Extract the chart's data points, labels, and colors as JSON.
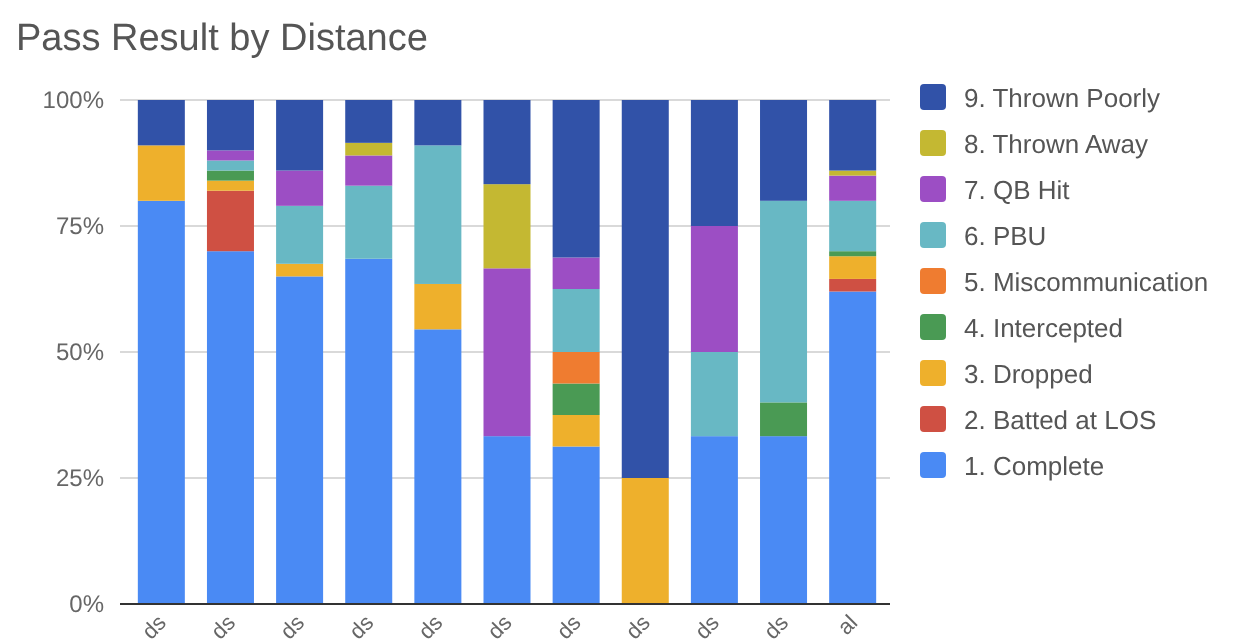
{
  "chart_data": {
    "type": "bar",
    "title": "Pass Result by Distance",
    "stacked": true,
    "categories": [
      "ds",
      "ds",
      "ds",
      "ds",
      "ds",
      "ds",
      "ds",
      "ds",
      "ds",
      "ds",
      "al"
    ],
    "series": [
      {
        "name": "1. Complete",
        "color": "#4a8af4",
        "values": [
          80,
          70,
          65,
          68.5,
          54.5,
          33.3,
          31.25,
          0,
          33.3,
          33.3,
          62
        ]
      },
      {
        "name": "2. Batted at LOS",
        "color": "#cf5043",
        "values": [
          0,
          12,
          0,
          0,
          0,
          0,
          0,
          0,
          0,
          0,
          2.5
        ]
      },
      {
        "name": "3. Dropped",
        "color": "#eeb02c",
        "values": [
          11,
          2,
          2.5,
          0,
          9,
          0,
          6.25,
          25,
          0,
          0,
          4.5
        ]
      },
      {
        "name": "4. Intercepted",
        "color": "#4a9a54",
        "values": [
          0,
          2,
          0,
          0,
          0,
          0,
          6.25,
          0,
          0,
          6.7,
          1
        ]
      },
      {
        "name": "5. Miscommunication",
        "color": "#ef7c30",
        "values": [
          0,
          0,
          0,
          0,
          0,
          0,
          6.25,
          0,
          0,
          0,
          0
        ]
      },
      {
        "name": "6. PBU",
        "color": "#68b8c4",
        "values": [
          0,
          2,
          11.5,
          14.5,
          27.5,
          0,
          12.5,
          0,
          16.7,
          40,
          10
        ]
      },
      {
        "name": "7. QB Hit",
        "color": "#9c4ec4",
        "values": [
          0,
          2,
          7,
          6,
          0,
          33.3,
          6.25,
          0,
          25,
          0,
          5
        ]
      },
      {
        "name": "8. Thrown Away",
        "color": "#c4b832",
        "values": [
          0,
          0,
          0,
          2.5,
          0,
          16.7,
          0,
          0,
          0,
          0,
          1
        ]
      },
      {
        "name": "9. Thrown Poorly",
        "color": "#3152a8",
        "values": [
          9,
          10,
          14,
          8.5,
          9,
          16.7,
          31.25,
          75,
          25,
          20,
          14
        ]
      }
    ],
    "ylim": [
      0,
      100
    ],
    "yticks": [
      {
        "value": 0,
        "label": "0%"
      },
      {
        "value": 25,
        "label": "25%"
      },
      {
        "value": 50,
        "label": "50%"
      },
      {
        "value": 75,
        "label": "75%"
      },
      {
        "value": 100,
        "label": "100%"
      }
    ],
    "grid": "y",
    "legend": "right"
  }
}
